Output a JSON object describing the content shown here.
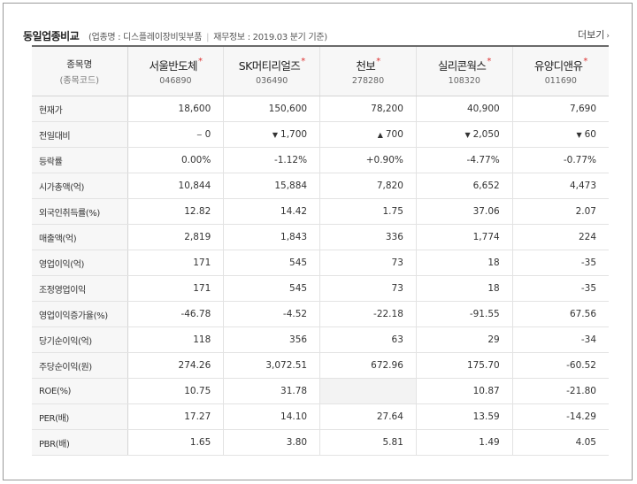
{
  "header": {
    "title": "동일업종비교",
    "industry": "(업종명 : 디스플레이장비및부품",
    "finance_basis": "재무정보 : 2019.03 분기 기준)",
    "more_label": "더보기"
  },
  "label_header": {
    "name": "종목명",
    "code": "(종목코드)"
  },
  "companies": [
    {
      "name": "서울반도체",
      "code": "046890"
    },
    {
      "name": "SK머티리얼즈",
      "code": "036490"
    },
    {
      "name": "천보",
      "code": "278280"
    },
    {
      "name": "실리콘웍스",
      "code": "108320"
    },
    {
      "name": "유양디앤유",
      "code": "011690"
    }
  ],
  "rows": [
    {
      "label": "현재가",
      "values": [
        "18,600",
        "150,600",
        "78,200",
        "40,900",
        "7,690"
      ]
    },
    {
      "label": "전일대비",
      "values": [
        "0",
        "1,700",
        "700",
        "2,050",
        "60"
      ],
      "dirs": [
        "flat",
        "down",
        "up",
        "down",
        "down"
      ]
    },
    {
      "label": "등락률",
      "values": [
        "0.00%",
        "-1.12%",
        "+0.90%",
        "-4.77%",
        "-0.77%"
      ],
      "dirs": [
        "flat",
        "down",
        "up",
        "down",
        "down"
      ]
    },
    {
      "label": "시가총액(억)",
      "values": [
        "10,844",
        "15,884",
        "7,820",
        "6,652",
        "4,473"
      ]
    },
    {
      "label": "외국인취득률(%)",
      "values": [
        "12.82",
        "14.42",
        "1.75",
        "37.06",
        "2.07"
      ]
    },
    {
      "label": "매출액(억)",
      "values": [
        "2,819",
        "1,843",
        "336",
        "1,774",
        "224"
      ]
    },
    {
      "label": "영업이익(억)",
      "values": [
        "171",
        "545",
        "73",
        "18",
        "-35"
      ]
    },
    {
      "label": "조정영업이익",
      "values": [
        "171",
        "545",
        "73",
        "18",
        "-35"
      ]
    },
    {
      "label": "영업이익증가율(%)",
      "values": [
        "-46.78",
        "-4.52",
        "-22.18",
        "-91.55",
        "67.56"
      ]
    },
    {
      "label": "당기순이익(억)",
      "values": [
        "118",
        "356",
        "63",
        "29",
        "-34"
      ]
    },
    {
      "label": "주당순이익(원)",
      "values": [
        "274.26",
        "3,072.51",
        "672.96",
        "175.70",
        "-60.52"
      ]
    },
    {
      "label": "ROE(%)",
      "values": [
        "10.75",
        "31.78",
        "",
        "10.87",
        "-21.80"
      ]
    },
    {
      "label": "PER(배)",
      "values": [
        "17.27",
        "14.10",
        "27.64",
        "13.59",
        "-14.29"
      ]
    },
    {
      "label": "PBR(배)",
      "values": [
        "1.65",
        "3.80",
        "5.81",
        "1.49",
        "4.05"
      ]
    }
  ],
  "symbols": {
    "star": "*",
    "up": "▲",
    "down": "▼",
    "flat": "−"
  },
  "colors": {
    "up": "#d8212b",
    "down": "#1958c9",
    "star": "#d33333"
  }
}
